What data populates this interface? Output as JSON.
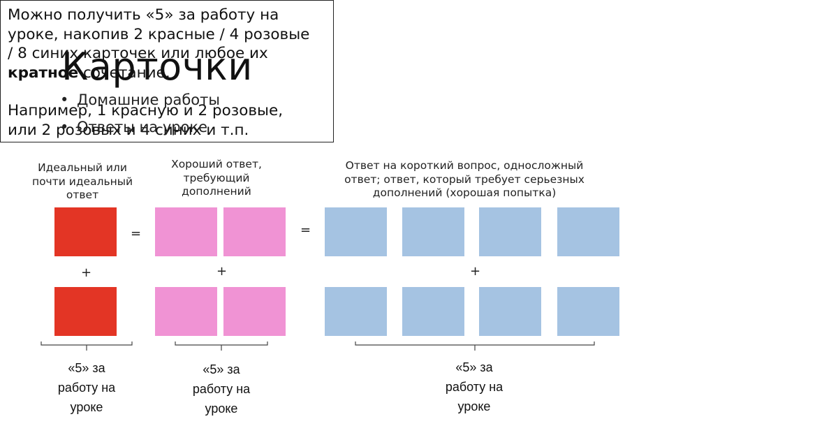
{
  "header": {
    "title": "Карточки",
    "bullets": [
      "Домашние работы",
      "Ответы на уроке"
    ],
    "bullet_glyph": "•"
  },
  "note": {
    "line1": "Можно получить «5» за работу на",
    "line2": "уроке, накопив 2 красные / 4 розовые",
    "line3": "/ 8 синих карточек или любое их",
    "line4_bold": "кратное",
    "line4_rest": " сочетание.",
    "line5": "Например, 1 красную и 2 розовые,",
    "line6": "или 2 розовых и 4 синих и т.п."
  },
  "groups": {
    "red": {
      "caption": [
        "Идеальный или",
        "почти идеальный",
        "ответ"
      ],
      "color": "#e33525",
      "reward": [
        "«5» за",
        "работу на",
        "уроке"
      ]
    },
    "pink": {
      "caption": [
        "Хороший ответ,",
        "требующий",
        "дополнений"
      ],
      "color": "#f093d4",
      "reward": [
        "«5» за",
        "работу на",
        "уроке"
      ]
    },
    "blue": {
      "caption": [
        "Ответ на короткий вопрос, односложный",
        "ответ; ответ, который требует серьезных",
        "дополнений (хорошая попытка)"
      ],
      "color": "#a5c3e2",
      "reward": [
        "«5» за",
        "работу на",
        "уроке"
      ]
    }
  },
  "operators": {
    "equals": "=",
    "plus": "+"
  }
}
